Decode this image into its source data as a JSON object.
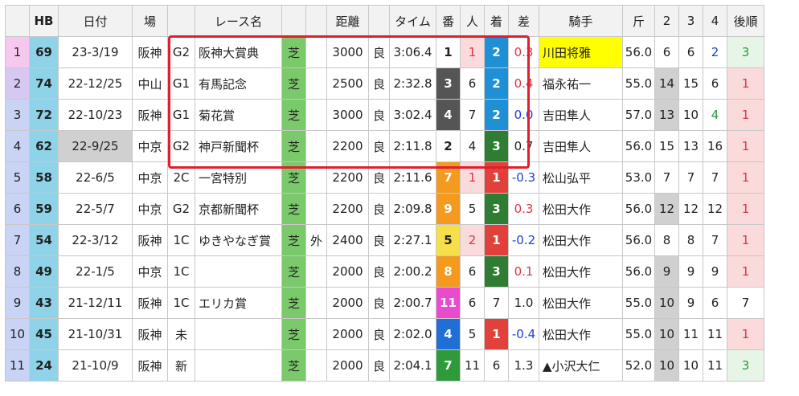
{
  "headers": [
    "",
    "HB",
    "日付",
    "場",
    "",
    "レース名",
    "",
    "",
    "距離",
    "",
    "タイム",
    "番",
    "人",
    "着",
    "差",
    "騎手",
    "斤",
    "2",
    "3",
    "4",
    "後順"
  ],
  "rows": [
    {
      "idx": "1",
      "idx_bg": "#f7c8ef",
      "hb": "69",
      "date": "23-3/19",
      "date_gray": false,
      "venue": "阪神",
      "grade": "G2",
      "race": "阪神大賞典",
      "surface": "芝",
      "extra": "",
      "dist": "3000",
      "cond": "良",
      "time": "3:06.4",
      "ban": "1",
      "ban_bg": "#ffffff",
      "ban_fg": "#222222",
      "ninki": "1",
      "ninki_pink": true,
      "chaku": "2",
      "chaku_bg": "#1f8fd6",
      "sa": "0.3",
      "sa_sign": "pos",
      "jockey": "川田将雅",
      "jockey_hl": true,
      "kin": "56.0",
      "c2": "6",
      "c2_gray": false,
      "c3": "6",
      "c3_gray": false,
      "c4": "2",
      "c4_color": "blue",
      "late": "3",
      "late_bg": "green"
    },
    {
      "idx": "2",
      "idx_bg": "#d7c8f2",
      "hb": "74",
      "date": "22-12/25",
      "date_gray": false,
      "venue": "中山",
      "grade": "G1",
      "race": "有馬記念",
      "surface": "芝",
      "extra": "",
      "dist": "2500",
      "cond": "良",
      "time": "2:32.8",
      "ban": "3",
      "ban_bg": "#555555",
      "ban_fg": "#ffffff",
      "ninki": "6",
      "ninki_pink": false,
      "chaku": "2",
      "chaku_bg": "#1f8fd6",
      "sa": "0.4",
      "sa_sign": "pos",
      "jockey": "福永祐一",
      "jockey_hl": false,
      "kin": "55.0",
      "c2": "14",
      "c2_gray": true,
      "c3": "15",
      "c3_gray": false,
      "c4": "6",
      "c4_color": "",
      "late": "1",
      "late_bg": "pink"
    },
    {
      "idx": "3",
      "idx_bg": "#c8d3f5",
      "hb": "72",
      "date": "22-10/23",
      "date_gray": false,
      "venue": "阪神",
      "grade": "G1",
      "race": "菊花賞",
      "surface": "芝",
      "extra": "",
      "dist": "3000",
      "cond": "良",
      "time": "3:02.4",
      "ban": "4",
      "ban_bg": "#555555",
      "ban_fg": "#ffffff",
      "ninki": "7",
      "ninki_pink": false,
      "chaku": "2",
      "chaku_bg": "#1f8fd6",
      "sa": "0.0",
      "sa_sign": "neg",
      "jockey": "吉田隼人",
      "jockey_hl": false,
      "kin": "57.0",
      "c2": "13",
      "c2_gray": true,
      "c3": "10",
      "c3_gray": false,
      "c4": "4",
      "c4_color": "green",
      "late": "1",
      "late_bg": "pink"
    },
    {
      "idx": "4",
      "idx_bg": "#c8d3f5",
      "hb": "62",
      "date": "22-9/25",
      "date_gray": true,
      "venue": "中京",
      "grade": "G2",
      "race": "神戸新聞杯",
      "surface": "芝",
      "extra": "",
      "dist": "2200",
      "cond": "良",
      "time": "2:11.8",
      "ban": "2",
      "ban_bg": "#ffffff",
      "ban_fg": "#222222",
      "ninki": "4",
      "ninki_pink": false,
      "chaku": "3",
      "chaku_bg": "#2e7d32",
      "sa": "0.7",
      "sa_sign": "",
      "jockey": "吉田隼人",
      "jockey_hl": false,
      "kin": "56.0",
      "c2": "15",
      "c2_gray": false,
      "c3": "13",
      "c3_gray": false,
      "c4": "16",
      "c4_color": "",
      "late": "1",
      "late_bg": "pink"
    },
    {
      "idx": "5",
      "idx_bg": "#c8d3f5",
      "hb": "58",
      "date": "22-6/5",
      "date_gray": false,
      "venue": "中京",
      "grade": "2C",
      "race": "一宮特別",
      "surface": "芝",
      "extra": "",
      "dist": "2200",
      "cond": "良",
      "time": "2:11.6",
      "ban": "7",
      "ban_bg": "#f39a1f",
      "ban_fg": "#ffffff",
      "ninki": "1",
      "ninki_pink": true,
      "chaku": "1",
      "chaku_bg": "#e2413a",
      "sa": "-0.3",
      "sa_sign": "neg",
      "jockey": "松山弘平",
      "jockey_hl": false,
      "kin": "53.0",
      "c2": "7",
      "c2_gray": false,
      "c3": "7",
      "c3_gray": false,
      "c4": "7",
      "c4_color": "",
      "late": "1",
      "late_bg": "pink"
    },
    {
      "idx": "6",
      "idx_bg": "#c8d3f5",
      "hb": "59",
      "date": "22-5/7",
      "date_gray": false,
      "venue": "中京",
      "grade": "G2",
      "race": "京都新聞杯",
      "surface": "芝",
      "extra": "",
      "dist": "2200",
      "cond": "良",
      "time": "2:09.8",
      "ban": "9",
      "ban_bg": "#f39a1f",
      "ban_fg": "#ffffff",
      "ninki": "5",
      "ninki_pink": false,
      "chaku": "3",
      "chaku_bg": "#2e7d32",
      "sa": "0.3",
      "sa_sign": "pos",
      "jockey": "松田大作",
      "jockey_hl": false,
      "kin": "56.0",
      "c2": "12",
      "c2_gray": true,
      "c3": "12",
      "c3_gray": false,
      "c4": "12",
      "c4_color": "",
      "late": "1",
      "late_bg": "pink"
    },
    {
      "idx": "7",
      "idx_bg": "#c8d3f5",
      "hb": "54",
      "date": "22-3/12",
      "date_gray": false,
      "venue": "阪神",
      "grade": "1C",
      "race": "ゆきやなぎ賞",
      "surface": "芝",
      "extra": "外",
      "dist": "2400",
      "cond": "良",
      "time": "2:27.1",
      "ban": "5",
      "ban_bg": "#f5e04a",
      "ban_fg": "#222222",
      "ninki": "2",
      "ninki_pink": true,
      "chaku": "1",
      "chaku_bg": "#e2413a",
      "sa": "-0.2",
      "sa_sign": "neg",
      "jockey": "松田大作",
      "jockey_hl": false,
      "kin": "56.0",
      "c2": "8",
      "c2_gray": false,
      "c3": "8",
      "c3_gray": false,
      "c4": "7",
      "c4_color": "",
      "late": "1",
      "late_bg": "pink"
    },
    {
      "idx": "8",
      "idx_bg": "#c8d3f5",
      "hb": "49",
      "date": "22-1/5",
      "date_gray": false,
      "venue": "中京",
      "grade": "1C",
      "race": "",
      "surface": "芝",
      "extra": "",
      "dist": "2000",
      "cond": "良",
      "time": "2:00.2",
      "ban": "8",
      "ban_bg": "#f39a1f",
      "ban_fg": "#ffffff",
      "ninki": "6",
      "ninki_pink": false,
      "chaku": "3",
      "chaku_bg": "#2e7d32",
      "sa": "0.1",
      "sa_sign": "pos",
      "jockey": "松田大作",
      "jockey_hl": false,
      "kin": "56.0",
      "c2": "9",
      "c2_gray": true,
      "c3": "9",
      "c3_gray": false,
      "c4": "9",
      "c4_color": "",
      "late": "1",
      "late_bg": "pink"
    },
    {
      "idx": "9",
      "idx_bg": "#c8d3f5",
      "hb": "43",
      "date": "21-12/11",
      "date_gray": false,
      "venue": "阪神",
      "grade": "1C",
      "race": "エリカ賞",
      "surface": "芝",
      "extra": "",
      "dist": "2000",
      "cond": "良",
      "time": "2:00.7",
      "ban": "11",
      "ban_bg": "#e84ad0",
      "ban_fg": "#ffffff",
      "ninki": "6",
      "ninki_pink": false,
      "chaku": "7",
      "chaku_bg": "#ffffff",
      "sa": "1.0",
      "sa_sign": "",
      "jockey": "松田大作",
      "jockey_hl": false,
      "kin": "55.0",
      "c2": "10",
      "c2_gray": true,
      "c3": "9",
      "c3_gray": false,
      "c4": "6",
      "c4_color": "",
      "late": "7",
      "late_bg": "none"
    },
    {
      "idx": "10",
      "idx_bg": "#c8d3f5",
      "hb": "45",
      "date": "21-10/31",
      "date_gray": false,
      "venue": "阪神",
      "grade": "未",
      "race": "",
      "surface": "芝",
      "extra": "",
      "dist": "2000",
      "cond": "良",
      "time": "2:02.0",
      "ban": "4",
      "ban_bg": "#1f6fd6",
      "ban_fg": "#ffffff",
      "ninki": "5",
      "ninki_pink": false,
      "chaku": "1",
      "chaku_bg": "#e2413a",
      "sa": "-0.4",
      "sa_sign": "neg",
      "jockey": "松田大作",
      "jockey_hl": false,
      "kin": "55.0",
      "c2": "10",
      "c2_gray": true,
      "c3": "11",
      "c3_gray": false,
      "c4": "11",
      "c4_color": "",
      "late": "1",
      "late_bg": "pink"
    },
    {
      "idx": "11",
      "idx_bg": "#c8d3f5",
      "hb": "24",
      "date": "21-10/9",
      "date_gray": false,
      "venue": "阪神",
      "grade": "新",
      "race": "",
      "surface": "芝",
      "extra": "",
      "dist": "2000",
      "cond": "良",
      "time": "2:04.1",
      "ban": "7",
      "ban_bg": "#2e9a3a",
      "ban_fg": "#ffffff",
      "ninki": "11",
      "ninki_pink": false,
      "chaku": "6",
      "chaku_bg": "#ffffff",
      "sa": "1.3",
      "sa_sign": "",
      "jockey": "▲小沢大仁",
      "jockey_hl": false,
      "kin": "52.0",
      "c2": "10",
      "c2_gray": true,
      "c3": "10",
      "c3_gray": false,
      "c4": "11",
      "c4_color": "",
      "late": "3",
      "late_bg": "green"
    }
  ]
}
